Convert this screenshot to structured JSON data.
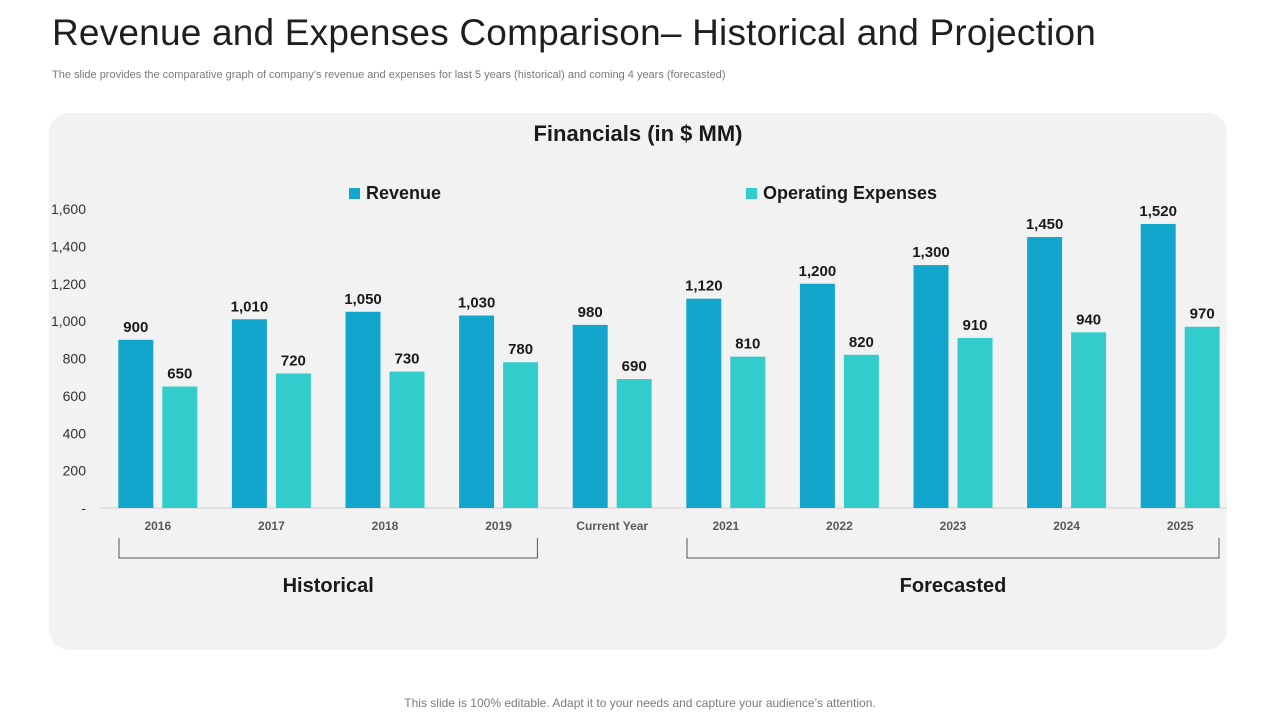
{
  "page": {
    "title": "Revenue and Expenses Comparison– Historical and Projection",
    "subtitle": "The slide provides the comparative graph of company’s revenue and expenses for last 5 years (historical) and coming 4 years (forecasted)",
    "footer": "This slide is 100% editable. Adapt it to your needs and capture your audience’s attention."
  },
  "chart_data": {
    "type": "bar",
    "title": "Financials (in $ MM)",
    "categories": [
      "2016",
      "2017",
      "2018",
      "2019",
      "Current Year",
      "2021",
      "2022",
      "2023",
      "2024",
      "2025"
    ],
    "series": [
      {
        "name": "Revenue",
        "color": "#12a6cd",
        "values": [
          900,
          1010,
          1050,
          1030,
          980,
          1120,
          1200,
          1300,
          1450,
          1520
        ],
        "labels": [
          "900",
          "1,010",
          "1,050",
          "1,030",
          "980",
          "1,120",
          "1,200",
          "1,300",
          "1,450",
          "1,520"
        ]
      },
      {
        "name": "Operating Expenses",
        "color": "#33cccc",
        "values": [
          650,
          720,
          730,
          780,
          690,
          810,
          820,
          910,
          940,
          970
        ],
        "labels": [
          "650",
          "720",
          "730",
          "780",
          "690",
          "810",
          "820",
          "910",
          "940",
          "970"
        ]
      }
    ],
    "ylim": [
      0,
      1600
    ],
    "yticks": [
      0,
      200,
      400,
      600,
      800,
      1000,
      1200,
      1400,
      1600
    ],
    "ytick_labels": [
      "-",
      "200",
      "400",
      "600",
      "800",
      "1,000",
      "1,200",
      "1,400",
      "1,600"
    ],
    "groups": [
      {
        "label": "Historical",
        "from": 0,
        "to": 3
      },
      {
        "label": "Forecasted",
        "from": 5,
        "to": 9
      }
    ],
    "legend": "top",
    "grid": false
  }
}
